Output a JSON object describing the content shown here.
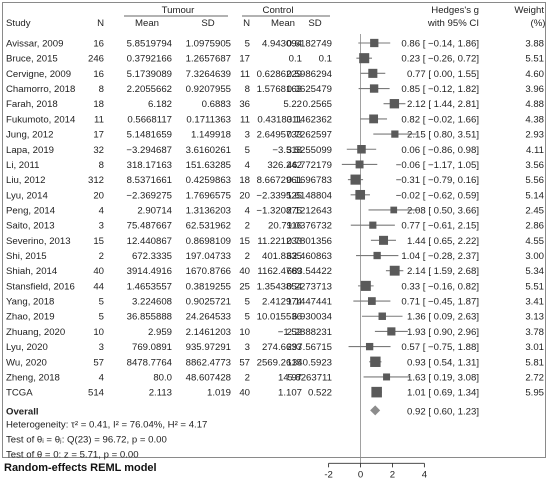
{
  "header": {
    "study": "Study",
    "tumour": "Tumour",
    "control": "Control",
    "n": "N",
    "mean": "Mean",
    "sd": "SD",
    "effect_line1": "Hedges's g",
    "effect_line2": "with 95% CI",
    "weight_line1": "Weight",
    "weight_line2": "(%)"
  },
  "summary": {
    "overall_label": "Overall",
    "overall_ci": "0.92 [ 0.60, 1.23]",
    "heterogeneity": "Heterogeneity: τ² = 0.41, I² = 76.04%, H² = 4.17",
    "test_homog": "Test of θᵢ = θⱼ: Q(23) = 96.72, p = 0.00",
    "test_theta": "Test of θ = 0: z = 5.71, p = 0.00"
  },
  "footer": "Random-effects REML model",
  "colors": {
    "marker": "#5a5a5a",
    "diamond": "#8c8c8c",
    "ci": "#7a7a7a",
    "line": "#8a8a8a"
  },
  "chart_data": {
    "type": "forest",
    "x_axis": {
      "ticks": [
        -2,
        0,
        2,
        4
      ],
      "range": [
        -2.6,
        4.35
      ],
      "null_line": 0
    },
    "overall": {
      "estimate": 0.92,
      "ci": [
        0.6,
        1.23
      ]
    },
    "studies": [
      {
        "study": "Avissar, 2009",
        "tn": "16",
        "tmean": "5.8519794",
        "tsd": "1.0975905",
        "cn": "5",
        "cmean": "4.943094",
        "csd": "0.6182749",
        "g": 0.86,
        "lo": -0.14,
        "hi": 1.86,
        "ci_text": "0.86 [ −0.14, 1.86]",
        "weight": "3.88"
      },
      {
        "study": "Bruce, 2015",
        "tn": "246",
        "tmean": "0.3792166",
        "tsd": "1.2657687",
        "cn": "17",
        "cmean": "0.1",
        "csd": "0.1",
        "g": 0.23,
        "lo": -0.26,
        "hi": 0.72,
        "ci_text": "0.23 [ −0.26, 0.72]",
        "weight": "5.51"
      },
      {
        "study": "Cervigne, 2009",
        "tn": "16",
        "tmean": "5.1739089",
        "tsd": "7.3264639",
        "cn": "11",
        "cmean": "0.6286229",
        "csd": "0.5986294",
        "g": 0.77,
        "lo": 0.0,
        "hi": 1.55,
        "ci_text": "0.77 [ 0.00, 1.55]",
        "weight": "4.60"
      },
      {
        "study": "Chamorro, 2018",
        "tn": "8",
        "tmean": "2.2055662",
        "tsd": "0.9207955",
        "cn": "8",
        "cmean": "1.5768163",
        "csd": "0.3625479",
        "g": 0.85,
        "lo": -0.12,
        "hi": 1.82,
        "ci_text": "0.85 [ −0.12, 1.82]",
        "weight": "3.96"
      },
      {
        "study": "Farah, 2018",
        "tn": "18",
        "tmean": "6.182",
        "tsd": "0.6883",
        "cn": "36",
        "cmean": "5.22",
        "csd": "0.2565",
        "g": 2.12,
        "lo": 1.44,
        "hi": 2.81,
        "ci_text": "2.12 [ 1.44, 2.81]",
        "weight": "4.88"
      },
      {
        "study": "Fukumoto, 2014",
        "tn": "11",
        "tmean": "0.5668117",
        "tsd": "0.1711363",
        "cn": "11",
        "cmean": "0.4318311",
        "csd": "0.1462362",
        "g": 0.82,
        "lo": -0.02,
        "hi": 1.66,
        "ci_text": "0.82 [ −0.02, 1.66]",
        "weight": "4.38"
      },
      {
        "study": "Jung, 2012",
        "tn": "17",
        "tmean": "5.1481659",
        "tsd": "1.149918",
        "cn": "3",
        "cmean": "2.6495733",
        "csd": "0.7262597",
        "g": 2.15,
        "lo": 0.8,
        "hi": 3.51,
        "ci_text": "2.15 [ 0.80, 3.51]",
        "weight": "2.93"
      },
      {
        "study": "Lapa, 2019",
        "tn": "32",
        "tmean": "−3.294687",
        "tsd": "3.6160261",
        "cn": "5",
        "cmean": "−3.518",
        "csd": "3.5255099",
        "g": 0.06,
        "lo": -0.86,
        "hi": 0.98,
        "ci_text": "0.06 [ −0.86, 0.98]",
        "weight": "4.11"
      },
      {
        "study": "Li, 2011",
        "tn": "8",
        "tmean": "318.17163",
        "tsd": "151.63285",
        "cn": "4",
        "cmean": "326.242",
        "csd": "46.772179",
        "g": -0.06,
        "lo": -1.17,
        "hi": 1.05,
        "ci_text": "−0.06 [ −1.17, 1.05]",
        "weight": "3.56"
      },
      {
        "study": "Liu, 2012",
        "tn": "312",
        "tmean": "8.5371661",
        "tsd": "0.4259863",
        "cn": "18",
        "cmean": "8.6672961",
        "csd": "0.1696783",
        "g": -0.31,
        "lo": -0.79,
        "hi": 0.16,
        "ci_text": "−0.31 [ −0.79, 0.16]",
        "weight": "5.56"
      },
      {
        "study": "Lyu, 2014",
        "tn": "20",
        "tmean": "−2.369275",
        "tsd": "1.7696575",
        "cn": "20",
        "cmean": "−2.339525",
        "csd": "1.6148804",
        "g": -0.02,
        "lo": -0.62,
        "hi": 0.59,
        "ci_text": "−0.02 [ −0.62, 0.59]",
        "weight": "5.14"
      },
      {
        "study": "Peng, 2014",
        "tn": "4",
        "tmean": "2.90714",
        "tsd": "1.3136203",
        "cn": "4",
        "cmean": "−1.320875",
        "csd": "2.1212643",
        "g": 2.08,
        "lo": 0.5,
        "hi": 3.66,
        "ci_text": "2.08 [ 0.50, 3.66]",
        "weight": "2.45"
      },
      {
        "study": "Saito, 2013",
        "tn": "3",
        "tmean": "75.487667",
        "tsd": "62.531962",
        "cn": "2",
        "cmean": "20.7116",
        "csd": "9.0376732",
        "g": 0.77,
        "lo": -0.61,
        "hi": 2.15,
        "ci_text": "0.77 [ −0.61, 2.15]",
        "weight": "2.86"
      },
      {
        "study": "Severino, 2013",
        "tn": "15",
        "tmean": "12.440867",
        "tsd": "0.8698109",
        "cn": "15",
        "cmean": "11.221233",
        "csd": "0.7801356",
        "g": 1.44,
        "lo": 0.65,
        "hi": 2.22,
        "ci_text": "1.44 [ 0.65, 2.22]",
        "weight": "4.55"
      },
      {
        "study": "Shi, 2015",
        "tn": "2",
        "tmean": "672.3335",
        "tsd": "197.04733",
        "cn": "2",
        "cmean": "401.8335",
        "csd": "62.460863",
        "g": 1.04,
        "lo": -0.28,
        "hi": 2.37,
        "ci_text": "1.04 [ −0.28, 2.37]",
        "weight": "3.00"
      },
      {
        "study": "Shiah, 2014",
        "tn": "40",
        "tmean": "3914.4916",
        "tsd": "1670.8766",
        "cn": "40",
        "cmean": "1162.4769",
        "csd": "683.54422",
        "g": 2.14,
        "lo": 1.59,
        "hi": 2.68,
        "ci_text": "2.14 [ 1.59, 2.68]",
        "weight": "5.34"
      },
      {
        "study": "Stansfield, 2016",
        "tn": "44",
        "tmean": "1.4653557",
        "tsd": "0.3819255",
        "cn": "25",
        "cmean": "1.3543854",
        "csd": "0.2273713",
        "g": 0.33,
        "lo": -0.16,
        "hi": 0.82,
        "ci_text": "0.33 [ −0.16, 0.82]",
        "weight": "5.51"
      },
      {
        "study": "Yang, 2018",
        "tn": "5",
        "tmean": "3.224608",
        "tsd": "0.9025721",
        "cn": "5",
        "cmean": "2.412974",
        "csd": "1.1447441",
        "g": 0.71,
        "lo": -0.45,
        "hi": 1.87,
        "ci_text": "0.71 [ −0.45, 1.87]",
        "weight": "3.41"
      },
      {
        "study": "Zhao, 2019",
        "tn": "5",
        "tmean": "36.855888",
        "tsd": "24.264533",
        "cn": "5",
        "cmean": "10.015536",
        "csd": "6.930034",
        "g": 1.36,
        "lo": 0.09,
        "hi": 2.63,
        "ci_text": "1.36 [ 0.09, 2.63]",
        "weight": "3.13"
      },
      {
        "study": "Zhuang, 2020",
        "tn": "10",
        "tmean": "2.959",
        "tsd": "2.1461203",
        "cn": "10",
        "cmean": "−1.52",
        "csd": "2.2888231",
        "g": 1.93,
        "lo": 0.9,
        "hi": 2.96,
        "ci_text": "1.93 [ 0.90, 2.96]",
        "weight": "3.78"
      },
      {
        "study": "Lyu, 2020",
        "tn": "3",
        "tmean": "769.0891",
        "tsd": "935.97291",
        "cn": "3",
        "cmean": "274.6633",
        "csd": "297.56715",
        "g": 0.57,
        "lo": -0.75,
        "hi": 1.88,
        "ci_text": "0.57 [ −0.75, 1.88]",
        "weight": "3.01"
      },
      {
        "study": "Wu, 2020",
        "tn": "57",
        "tmean": "8478.7764",
        "tsd": "8862.4773",
        "cn": "57",
        "cmean": "2569.2615",
        "csd": "1340.5923",
        "g": 0.93,
        "lo": 0.54,
        "hi": 1.31,
        "ci_text": "0.93 [ 0.54, 1.31]",
        "weight": "5.81"
      },
      {
        "study": "Zheng, 2018",
        "tn": "4",
        "tmean": "80.0",
        "tsd": "48.607428",
        "cn": "2",
        "cmean": "14.97",
        "csd": "5.8263711",
        "g": 1.63,
        "lo": 0.19,
        "hi": 3.08,
        "ci_text": "1.63 [ 0.19, 3.08]",
        "weight": "2.72"
      },
      {
        "study": "TCGA",
        "tn": "514",
        "tmean": "2.113",
        "tsd": "1.019",
        "cn": "40",
        "cmean": "1.107",
        "csd": "0.522",
        "g": 1.01,
        "lo": 0.69,
        "hi": 1.34,
        "ci_text": "1.01 [ 0.69, 1.34]",
        "weight": "5.95"
      }
    ]
  }
}
